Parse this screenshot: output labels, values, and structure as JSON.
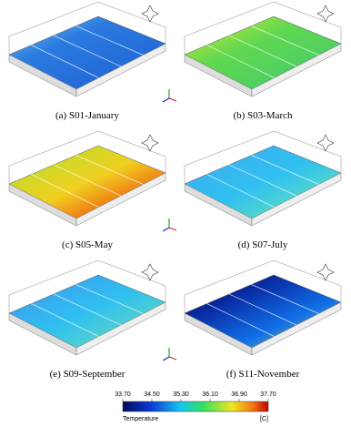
{
  "captions": [
    "(a) S01-January",
    "(b) S03-March",
    "(c) S05-May",
    "(d) S07-July",
    "(e) S09-September",
    "(f) S11-November"
  ],
  "colorbar": {
    "label": "Temperature",
    "unit": "[C]",
    "ticks": [
      {
        "value": 33.7,
        "label": "33.70"
      },
      {
        "value": 34.5,
        "label": "34.50"
      },
      {
        "value": 35.3,
        "label": "35.30"
      },
      {
        "value": 36.1,
        "label": "36.10"
      },
      {
        "value": 36.9,
        "label": "36.90"
      },
      {
        "value": 37.7,
        "label": "37.70"
      }
    ]
  }
}
